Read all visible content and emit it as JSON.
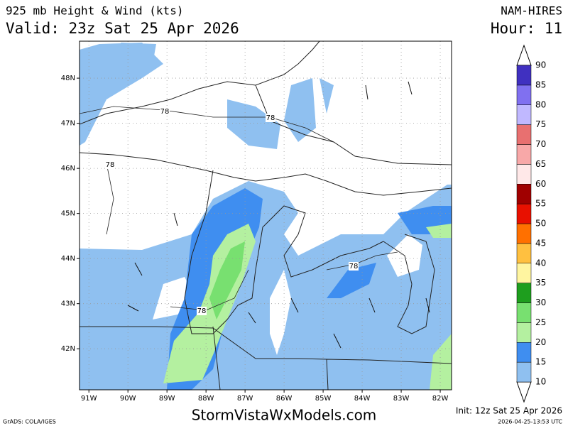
{
  "header": {
    "title": "925 mb Height & Wind (kts)",
    "valid": "Valid: 23z Sat 25 Apr 2026",
    "model": "NAM-HIRES",
    "hour": "Hour: 11"
  },
  "map": {
    "lat_range": [
      41.09,
      48.82
    ],
    "lon_range": [
      -91.24,
      -81.71
    ],
    "lat_ticks": [
      {
        "value": 48,
        "label": "48N"
      },
      {
        "value": 47,
        "label": "47N"
      },
      {
        "value": 46,
        "label": "46N"
      },
      {
        "value": 45,
        "label": "45N"
      },
      {
        "value": 44,
        "label": "44N"
      },
      {
        "value": 43,
        "label": "43N"
      },
      {
        "value": 42,
        "label": "42N"
      }
    ],
    "lon_ticks": [
      {
        "value": -91,
        "label": "91W"
      },
      {
        "value": -90,
        "label": "90W"
      },
      {
        "value": -89,
        "label": "89W"
      },
      {
        "value": -88,
        "label": "88W"
      },
      {
        "value": -87,
        "label": "87W"
      },
      {
        "value": -86,
        "label": "86W"
      },
      {
        "value": -85,
        "label": "85W"
      },
      {
        "value": -84,
        "label": "84W"
      },
      {
        "value": -83,
        "label": "83W"
      },
      {
        "value": -82,
        "label": "82W"
      }
    ],
    "grid": true,
    "contour_labels": [
      "78",
      "78",
      "78",
      "78",
      "78"
    ]
  },
  "colorbar": {
    "levels": [
      10,
      15,
      20,
      25,
      30,
      35,
      40,
      45,
      50,
      55,
      60,
      65,
      70,
      75,
      80,
      85,
      90
    ],
    "colors": [
      "#8fc0f0",
      "#3f8ef0",
      "#b4f0a0",
      "#78e070",
      "#1e9e1e",
      "#fff5a0",
      "#ffc040",
      "#ff7000",
      "#e81000",
      "#a00000",
      "#ffe8e8",
      "#f8a8a8",
      "#e87070",
      "#c0b8ff",
      "#8070f0",
      "#4030c0"
    ]
  },
  "footer": {
    "credit": "GrADS: COLA/IGES",
    "site": "StormVistaWxModels.com",
    "init": "Init: 12z Sat 25 Apr 2026",
    "stamp": "2026-04-25-13:53 UTC"
  }
}
